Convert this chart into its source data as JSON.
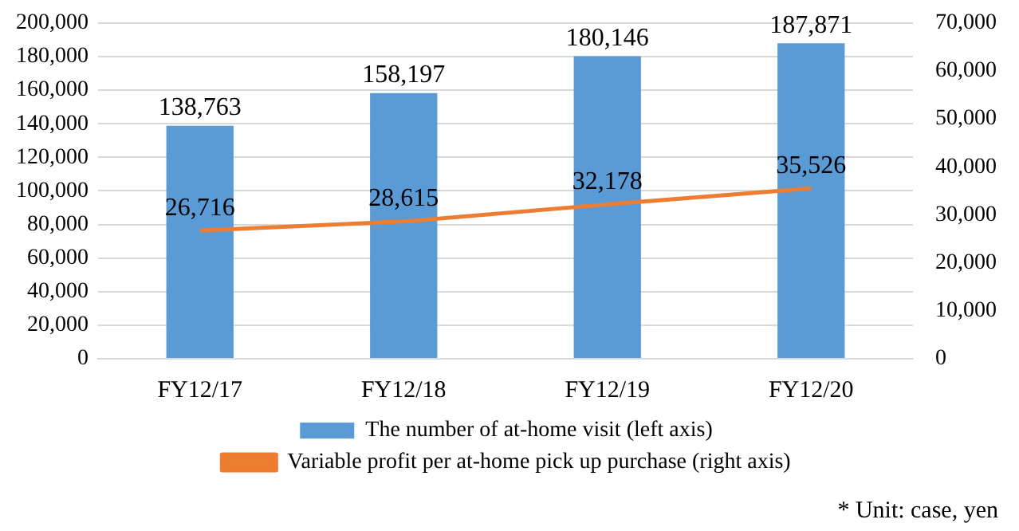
{
  "chart_data": {
    "type": "bar",
    "categories": [
      "FY12/17",
      "FY12/18",
      "FY12/19",
      "FY12/20"
    ],
    "series": [
      {
        "name": "The number of at-home visit (left axis)",
        "color": "#5b9bd5",
        "values": [
          138763,
          158197,
          180146,
          187871
        ],
        "value_labels": [
          "138,763",
          "158,197",
          "180,146",
          "187,871"
        ]
      },
      {
        "name": "Variable profit per at-home pick up purchase (right axis)",
        "type": "line",
        "axis": "y2",
        "color": "#ed7d31",
        "values": [
          26716,
          28615,
          32178,
          35526
        ],
        "value_labels": [
          "26,716",
          "28,615",
          "32,178",
          "35,526"
        ]
      }
    ],
    "ylim": [
      0,
      200000
    ],
    "yticks": [
      0,
      {
        "value": 20000,
        "label": "20,000"
      },
      {
        "value": 40000,
        "label": "40,000"
      },
      {
        "value": 60000,
        "label": "60,000"
      },
      {
        "value": 80000,
        "label": "80,000"
      },
      {
        "value": 100000,
        "label": "100,000"
      },
      {
        "value": 120000,
        "label": "120,000"
      },
      {
        "value": 140000,
        "label": "140,000"
      },
      {
        "value": 160000,
        "label": "160,000"
      },
      {
        "value": 180000,
        "label": "180,000"
      },
      {
        "value": 200000,
        "label": "200,000"
      }
    ],
    "y2lim": [
      0,
      70000
    ],
    "y2ticks": [
      0,
      {
        "value": 10000,
        "label": "10,000"
      },
      {
        "value": 20000,
        "label": "20,000"
      },
      {
        "value": 30000,
        "label": "30,000"
      },
      {
        "value": 40000,
        "label": "40,000"
      },
      {
        "value": 50000,
        "label": "50,000"
      },
      {
        "value": 60000,
        "label": "60,000"
      },
      {
        "value": 70000,
        "label": "70,000"
      }
    ],
    "grid": "y",
    "legend": "bottom",
    "marker": "none",
    "annotations": [
      "* Unit: case, yen"
    ]
  }
}
